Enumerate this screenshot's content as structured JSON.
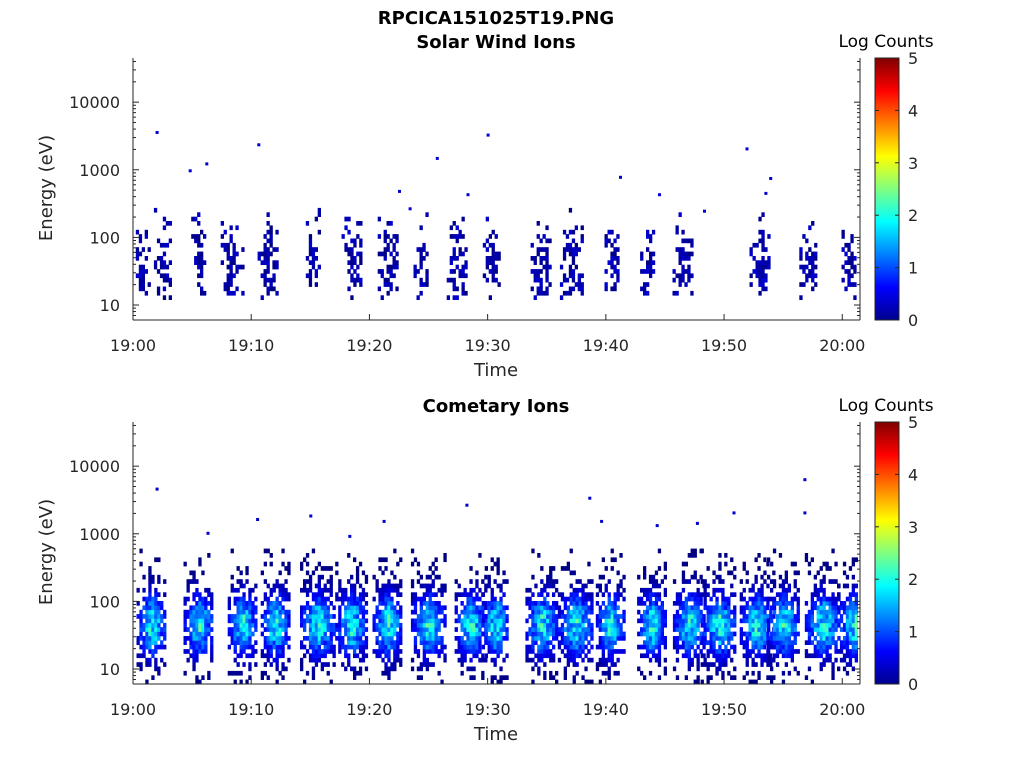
{
  "figure": {
    "title": "RPCICA151025T19.PNG"
  },
  "chart_data": [
    {
      "type": "heatmap",
      "title": "Solar Wind Ions",
      "xlabel": "Time",
      "ylabel": "Energy (eV)",
      "x_ticks": [
        "19:00",
        "19:10",
        "19:20",
        "19:30",
        "19:40",
        "19:50",
        "20:00"
      ],
      "x_tick_minutes": [
        0,
        10,
        20,
        30,
        40,
        50,
        60
      ],
      "xlim_minutes": [
        0,
        61.5
      ],
      "y_scale": "log",
      "y_ticks": [
        "10",
        "100",
        "1000",
        "10000"
      ],
      "y_tick_values": [
        10,
        100,
        1000,
        10000
      ],
      "ylim": [
        6,
        45000
      ],
      "colorbar": {
        "label": "Log Counts",
        "min": 0,
        "max": 5,
        "ticks": [
          "0",
          "1",
          "2",
          "3",
          "4",
          "5"
        ],
        "colormap": "jet"
      },
      "intensity_profile": {
        "description_values": "log counts mostly 0-0.8, bursts every ~3 min",
        "peak": 0.9
      },
      "bursts_minutes": [
        0.5,
        2.5,
        5.5,
        8.3,
        11.3,
        15.2,
        18.5,
        21.5,
        24.3,
        27.3,
        30.3,
        34.5,
        37.0,
        40.5,
        43.5,
        46.5,
        53.0,
        57.0,
        60.5
      ],
      "burst_energy_range_eV": [
        12,
        250
      ],
      "scattered_points": [
        {
          "t": 2.0,
          "e": 3500
        },
        {
          "t": 4.8,
          "e": 950
        },
        {
          "t": 6.2,
          "e": 1200
        },
        {
          "t": 10.6,
          "e": 2300
        },
        {
          "t": 25.7,
          "e": 1450
        },
        {
          "t": 30.0,
          "e": 3200
        },
        {
          "t": 28.3,
          "e": 420
        },
        {
          "t": 41.2,
          "e": 760
        },
        {
          "t": 51.9,
          "e": 2000
        },
        {
          "t": 53.9,
          "e": 730
        },
        {
          "t": 53.5,
          "e": 440
        },
        {
          "t": 48.3,
          "e": 240
        },
        {
          "t": 22.5,
          "e": 470
        },
        {
          "t": 23.4,
          "e": 260
        },
        {
          "t": 44.5,
          "e": 420
        }
      ]
    },
    {
      "type": "heatmap",
      "title": "Cometary Ions",
      "xlabel": "Time",
      "ylabel": "Energy (eV)",
      "x_ticks": [
        "19:00",
        "19:10",
        "19:20",
        "19:30",
        "19:40",
        "19:50",
        "20:00"
      ],
      "x_tick_minutes": [
        0,
        10,
        20,
        30,
        40,
        50,
        60
      ],
      "xlim_minutes": [
        0,
        61.5
      ],
      "y_scale": "log",
      "y_ticks": [
        "10",
        "100",
        "1000",
        "10000"
      ],
      "y_tick_values": [
        10,
        100,
        1000,
        10000
      ],
      "ylim": [
        6,
        45000
      ],
      "colorbar": {
        "label": "Log Counts",
        "min": 0,
        "max": 5,
        "ticks": [
          "0",
          "1",
          "2",
          "3",
          "4",
          "5"
        ],
        "colormap": "jet"
      },
      "intensity_profile": {
        "description_values": "log counts up to ~2.3 at ~30-80 eV in periodic bursts",
        "peak": 2.3
      },
      "bursts_minutes": [
        1.5,
        5.5,
        9.2,
        12.0,
        15.6,
        18.4,
        21.5,
        24.9,
        28.5,
        30.6,
        34.5,
        37.4,
        40.3,
        43.8,
        47.0,
        49.5,
        52.7,
        55.0,
        58.3,
        61.0
      ],
      "burst_energy_range_eV": [
        6,
        600
      ],
      "scattered_points": [
        {
          "t": 2.0,
          "e": 4500
        },
        {
          "t": 6.3,
          "e": 1000
        },
        {
          "t": 10.5,
          "e": 1600
        },
        {
          "t": 15.0,
          "e": 1800
        },
        {
          "t": 18.3,
          "e": 900
        },
        {
          "t": 21.2,
          "e": 1500
        },
        {
          "t": 28.2,
          "e": 2600
        },
        {
          "t": 38.6,
          "e": 3300
        },
        {
          "t": 39.6,
          "e": 1500
        },
        {
          "t": 47.7,
          "e": 1400
        },
        {
          "t": 50.8,
          "e": 2000
        },
        {
          "t": 56.8,
          "e": 6200
        },
        {
          "t": 56.8,
          "e": 2000
        },
        {
          "t": 44.3,
          "e": 1300
        }
      ]
    }
  ]
}
